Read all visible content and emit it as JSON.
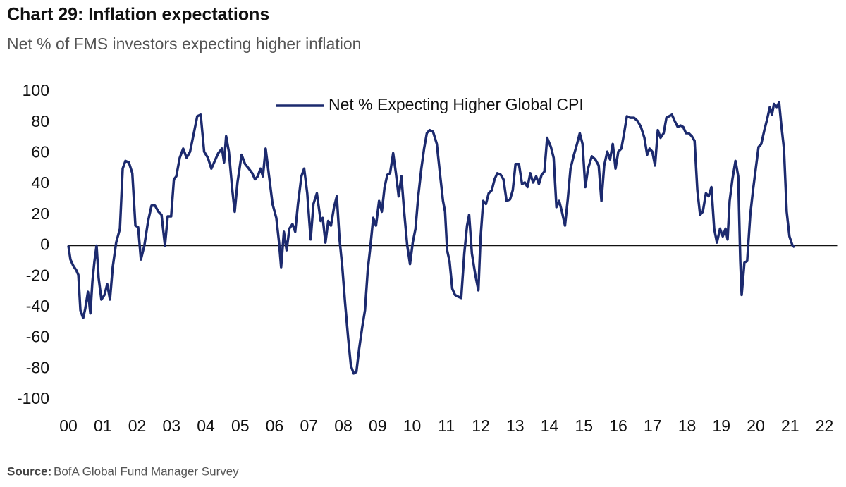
{
  "chart_data": {
    "type": "line",
    "title": "Chart 29: Inflation expectations",
    "subtitle": "Net % of FMS investors expecting higher inflation",
    "source": {
      "label": "Source:",
      "text": "BofA Global Fund Manager Survey"
    },
    "xlim": [
      0,
      22
    ],
    "ylim": [
      -100,
      100
    ],
    "xticks": [
      {
        "value": 0,
        "label": "00"
      },
      {
        "value": 1,
        "label": "01"
      },
      {
        "value": 2,
        "label": "02"
      },
      {
        "value": 3,
        "label": "03"
      },
      {
        "value": 4,
        "label": "04"
      },
      {
        "value": 5,
        "label": "05"
      },
      {
        "value": 6,
        "label": "06"
      },
      {
        "value": 7,
        "label": "07"
      },
      {
        "value": 8,
        "label": "08"
      },
      {
        "value": 9,
        "label": "09"
      },
      10,
      11,
      12,
      13,
      14,
      15,
      16,
      17,
      18,
      19,
      20,
      21,
      22
    ],
    "yticks": [
      -100,
      -80,
      -60,
      -40,
      -20,
      0,
      20,
      40,
      60,
      80,
      100
    ],
    "legend": "top",
    "x": [
      0,
      0.06,
      0.14,
      0.23,
      0.29,
      0.35,
      0.43,
      0.49,
      0.57,
      0.64,
      0.7,
      0.76,
      0.82,
      0.88,
      0.96,
      1.05,
      1.13,
      1.21,
      1.29,
      1.39,
      1.5,
      1.58,
      1.66,
      1.76,
      1.86,
      1.95,
      2.03,
      2.11,
      2.21,
      2.32,
      2.42,
      2.52,
      2.62,
      2.71,
      2.81,
      2.89,
      2.99,
      3.07,
      3.14,
      3.24,
      3.34,
      3.44,
      3.54,
      3.65,
      3.75,
      3.85,
      3.95,
      4.06,
      4.16,
      4.26,
      4.36,
      4.47,
      4.53,
      4.59,
      4.67,
      4.77,
      4.84,
      4.92,
      5.04,
      5.14,
      5.25,
      5.35,
      5.43,
      5.51,
      5.59,
      5.66,
      5.74,
      5.84,
      5.94,
      6.05,
      6.13,
      6.19,
      6.27,
      6.35,
      6.43,
      6.52,
      6.6,
      6.68,
      6.78,
      6.86,
      6.95,
      7.05,
      7.13,
      7.23,
      7.34,
      7.4,
      7.48,
      7.56,
      7.64,
      7.73,
      7.81,
      7.89,
      7.97,
      8.05,
      8.14,
      8.22,
      8.3,
      8.38,
      8.46,
      8.55,
      8.63,
      8.71,
      8.79,
      8.87,
      8.95,
      9.04,
      9.12,
      9.2,
      9.28,
      9.36,
      9.45,
      9.53,
      9.61,
      9.69,
      9.77,
      9.86,
      9.94,
      10.02,
      10.1,
      10.18,
      10.27,
      10.35,
      10.43,
      10.51,
      10.61,
      10.72,
      10.82,
      10.9,
      10.96,
      11.02,
      11.09,
      11.17,
      11.25,
      11.33,
      11.43,
      11.52,
      11.6,
      11.66,
      11.74,
      11.84,
      11.93,
      11.99,
      12.07,
      12.15,
      12.23,
      12.32,
      12.4,
      12.48,
      12.58,
      12.66,
      12.75,
      12.85,
      12.93,
      13.01,
      13.11,
      13.2,
      13.28,
      13.36,
      13.44,
      13.52,
      13.61,
      13.69,
      13.77,
      13.85,
      13.93,
      14.04,
      14.12,
      14.2,
      14.28,
      14.36,
      14.45,
      14.53,
      14.61,
      14.71,
      14.8,
      14.88,
      14.96,
      15.04,
      15.12,
      15.23,
      15.33,
      15.43,
      15.51,
      15.59,
      15.68,
      15.76,
      15.84,
      15.92,
      16,
      16.09,
      16.17,
      16.25,
      16.35,
      16.46,
      16.56,
      16.66,
      16.76,
      16.84,
      16.91,
      16.99,
      17.07,
      17.15,
      17.23,
      17.32,
      17.4,
      17.48,
      17.56,
      17.64,
      17.73,
      17.81,
      17.89,
      17.97,
      18.05,
      18.14,
      18.22,
      18.3,
      18.38,
      18.46,
      18.55,
      18.63,
      18.71,
      18.79,
      18.87,
      18.96,
      19.04,
      19.12,
      19.18,
      19.24,
      19.32,
      19.41,
      19.49,
      19.55,
      19.59,
      19.67,
      19.75,
      19.84,
      19.92,
      20,
      20.08,
      20.16,
      20.25,
      20.33,
      20.41,
      20.47,
      20.53,
      20.61,
      20.68,
      20.74,
      20.82,
      20.9,
      20.98,
      21.07,
      21.13
    ],
    "series": [
      {
        "name": "Net % Expecting Higher Global CPI",
        "color": "#1c2a6e",
        "values": [
          0,
          -9,
          -13,
          -16,
          -19,
          -42,
          -47,
          -41,
          -30,
          -44,
          -23,
          -10,
          0,
          -21,
          -35,
          -32,
          -25,
          -35,
          -14,
          2,
          11,
          50,
          55,
          54,
          47,
          13,
          12,
          -9,
          0,
          16,
          26,
          26,
          22,
          20,
          0,
          19,
          19,
          43,
          45,
          57,
          63,
          57,
          61,
          73,
          84,
          85,
          61,
          57,
          50,
          55,
          60,
          63,
          54,
          71,
          61,
          36,
          22,
          41,
          59,
          53,
          50,
          47,
          43,
          45,
          50,
          45,
          63,
          45,
          27,
          18,
          2,
          -14,
          9,
          -3,
          11,
          14,
          9,
          27,
          45,
          50,
          34,
          4,
          27,
          34,
          16,
          18,
          2,
          16,
          13,
          25,
          32,
          4,
          -14,
          -37,
          -60,
          -78,
          -83,
          -82,
          -67,
          -53,
          -42,
          -16,
          0,
          18,
          13,
          29,
          22,
          38,
          46,
          47,
          60,
          47,
          32,
          45,
          22,
          0,
          -12,
          2,
          11,
          32,
          50,
          63,
          73,
          75,
          74,
          66,
          45,
          29,
          22,
          -3,
          -10,
          -28,
          -32,
          -33,
          -34,
          -5,
          13,
          20,
          -5,
          -19,
          -29,
          4,
          29,
          27,
          34,
          36,
          43,
          47,
          46,
          43,
          29,
          30,
          36,
          53,
          53,
          40,
          41,
          38,
          47,
          41,
          45,
          40,
          46,
          48,
          70,
          64,
          57,
          25,
          29,
          22,
          13,
          30,
          50,
          59,
          66,
          73,
          66,
          38,
          50,
          58,
          56,
          52,
          29,
          52,
          61,
          56,
          66,
          50,
          61,
          63,
          73,
          84,
          83,
          83,
          81,
          77,
          70,
          59,
          63,
          61,
          52,
          75,
          70,
          73,
          83,
          84,
          85,
          81,
          77,
          78,
          77,
          73,
          73,
          71,
          68,
          36,
          20,
          22,
          34,
          32,
          38,
          11,
          2,
          11,
          6,
          11,
          4,
          29,
          43,
          55,
          45,
          -10,
          -32,
          -11,
          -10,
          20,
          36,
          50,
          64,
          66,
          75,
          82,
          90,
          85,
          92,
          90,
          93,
          79,
          63,
          22,
          6,
          0,
          -1
        ]
      }
    ]
  }
}
